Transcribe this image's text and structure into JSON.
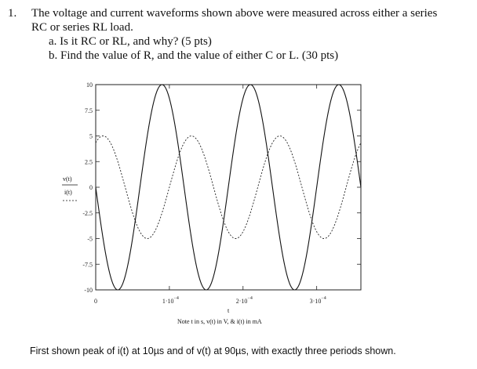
{
  "question": {
    "number": "1.",
    "line1": "The voltage and current waveforms shown above were measured across either a series",
    "line2": "RC or series RL load.",
    "part_a": "a.  Is it RC or RL, and why?  (5 pts)",
    "part_b": "b.  Find the value of R, and the value of either C or L.  (30 pts)"
  },
  "chart_data": {
    "type": "line",
    "title": "",
    "xlabel": "t",
    "ylabel_series": [
      "v(t)",
      "i(t)"
    ],
    "note": "Note t in s, v(t) in V, & i(t) in mA",
    "xlim": [
      0,
      0.00036
    ],
    "ylim": [
      -10,
      10
    ],
    "yticks": [
      "10",
      "7.5",
      "5",
      "2.5",
      "0",
      "-2.5",
      "-5",
      "-7.5",
      "-10"
    ],
    "xticks": [
      {
        "base": "0",
        "exp": ""
      },
      {
        "base": "1·10",
        "exp": "−4"
      },
      {
        "base": "2·10",
        "exp": "−4"
      },
      {
        "base": "3·10",
        "exp": "−4"
      }
    ],
    "series": [
      {
        "name": "v(t)",
        "style": "solid",
        "amplitude": 10,
        "period_s": 0.00012,
        "peak_time_s": 9e-05
      },
      {
        "name": "i(t)",
        "style": "dashed",
        "amplitude": 5,
        "period_s": 0.00012,
        "peak_time_s": 1e-05
      }
    ]
  },
  "footer_text": "First shown peak of i(t) at 10µs and of v(t) at 90µs, with exactly three periods shown."
}
